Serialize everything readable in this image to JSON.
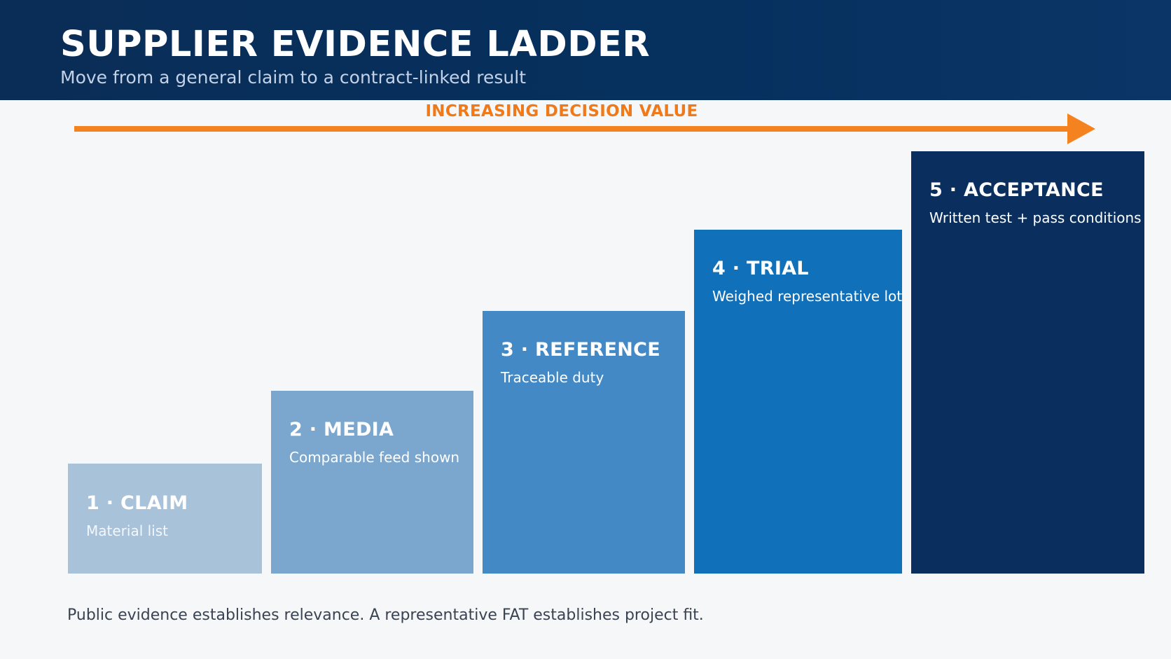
{
  "header": {
    "title": "SUPPLIER EVIDENCE LADDER",
    "subtitle": "Move from a general claim to a contract-linked result"
  },
  "arrow": {
    "label": "INCREASING DECISION VALUE"
  },
  "steps": [
    {
      "title": "1 · CLAIM",
      "description": "Material list"
    },
    {
      "title": "2 · MEDIA",
      "description": "Comparable feed shown"
    },
    {
      "title": "3 · REFERENCE",
      "description": "Traceable duty"
    },
    {
      "title": "4 · TRIAL",
      "description": "Weighed representative lot"
    },
    {
      "title": "5 · ACCEPTANCE",
      "description": "Written test + pass conditions"
    }
  ],
  "footer": {
    "note": "Public evidence establishes relevance. A representative FAT establishes project fit."
  },
  "colors": {
    "header_background": "#0a2d57",
    "accent_orange": "#f4821f",
    "step_1": "#a8c2da",
    "step_2": "#7ba7ce",
    "step_3": "#4389c5",
    "step_4": "#1170ba",
    "step_5": "#0a2f5e"
  }
}
